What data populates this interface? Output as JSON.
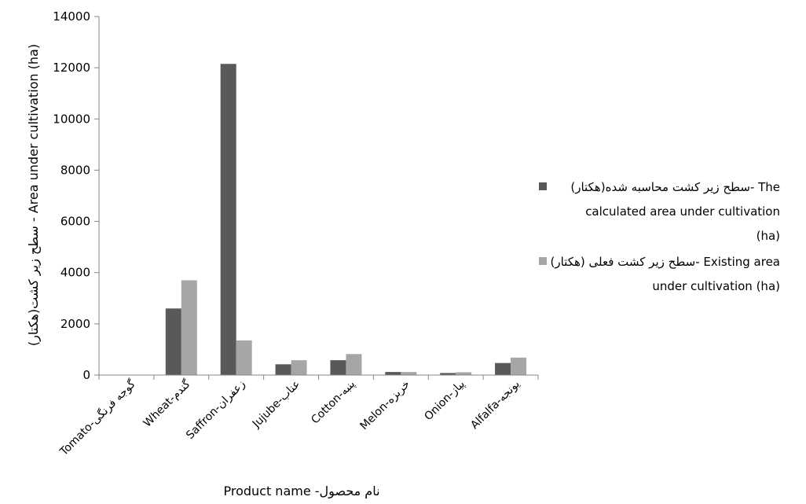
{
  "chart_data": {
    "type": "bar",
    "categories": [
      "Tomato-گوجه فرنگی",
      "Wheat-گندم",
      "Saffron-زعفران",
      "Jujube-عناب",
      "Cotton-پنبه",
      "Melon-خربزه",
      "Onion-پیاز",
      "Alfalfa-یونجه"
    ],
    "series": [
      {
        "name_lines": [
          "سطح زیر کشت محاسبه شده(هکتار)-  The",
          "calculated area under cultivation",
          "(ha)"
        ],
        "color": "#595959",
        "values": [
          0,
          2600,
          12150,
          420,
          580,
          120,
          80,
          470
        ]
      },
      {
        "name_lines": [
          "سطح زیر کشت فعلی (هکتار)-  Existing area",
          "under cultivation  (ha)"
        ],
        "color": "#a6a6a6",
        "values": [
          0,
          3700,
          1350,
          580,
          820,
          120,
          110,
          680
        ]
      }
    ],
    "xlabel": "Product name -نام محصول",
    "ylabel": "سطح زیر کشت(هکتار) - Area under cultivation (ha)",
    "ylim": [
      0,
      14000
    ],
    "yticks": [
      0,
      2000,
      4000,
      6000,
      8000,
      10000,
      12000,
      14000
    ],
    "grid": false,
    "legend_position": "right"
  }
}
